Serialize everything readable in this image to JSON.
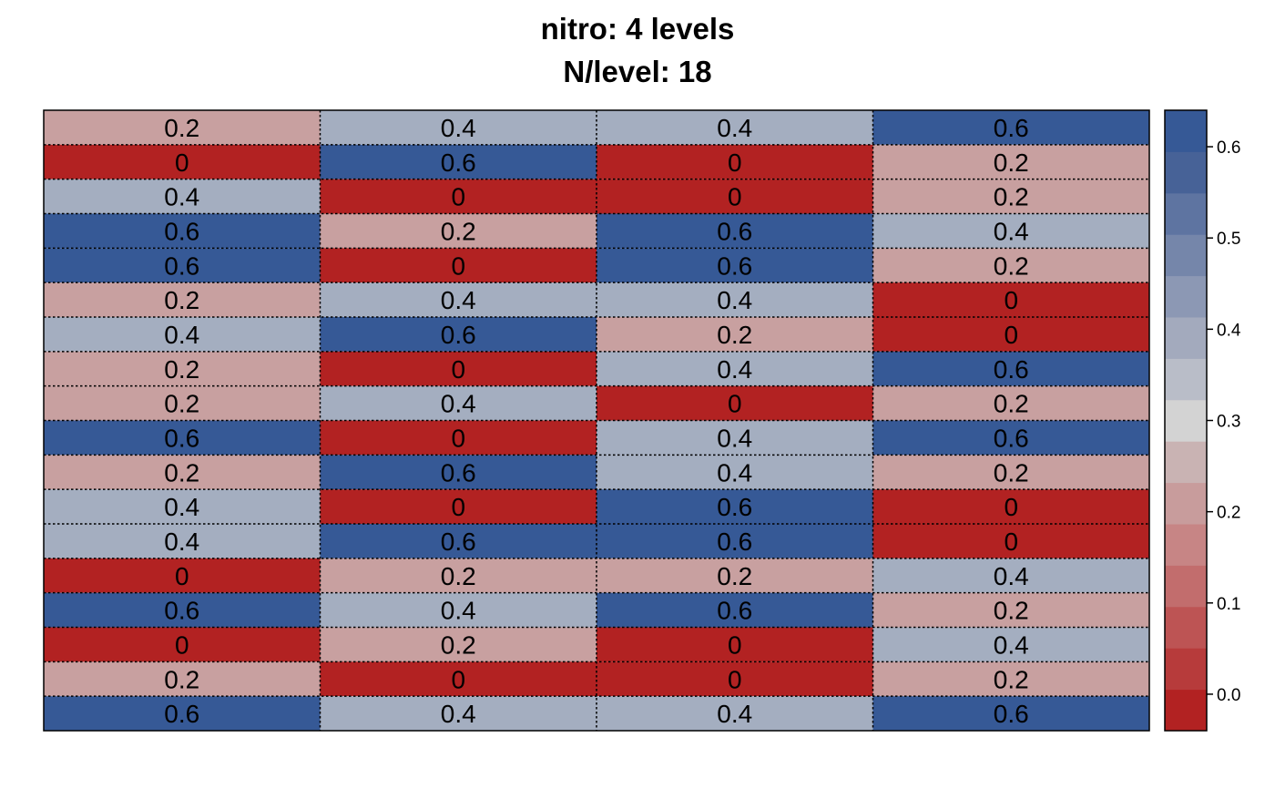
{
  "chart_data": {
    "type": "heatmap",
    "title": "nitro: 4 levels",
    "subtitle": "N/level: 18",
    "columns": 4,
    "values": [
      [
        0.2,
        0.4,
        0.4,
        0.6
      ],
      [
        0,
        0.6,
        0,
        0.2
      ],
      [
        0.4,
        0,
        0,
        0.2
      ],
      [
        0.6,
        0.2,
        0.6,
        0.4
      ],
      [
        0.6,
        0,
        0.6,
        0.2
      ],
      [
        0.2,
        0.4,
        0.4,
        0
      ],
      [
        0.4,
        0.6,
        0.2,
        0
      ],
      [
        0.2,
        0,
        0.4,
        0.6
      ],
      [
        0.2,
        0.4,
        0,
        0.2
      ],
      [
        0.6,
        0,
        0.4,
        0.6
      ],
      [
        0.2,
        0.6,
        0.4,
        0.2
      ],
      [
        0.4,
        0,
        0.6,
        0
      ],
      [
        0.4,
        0.6,
        0.6,
        0
      ],
      [
        0,
        0.2,
        0.2,
        0.4
      ],
      [
        0.6,
        0.4,
        0.6,
        0.2
      ],
      [
        0,
        0.2,
        0,
        0.4
      ],
      [
        0.2,
        0,
        0,
        0.2
      ],
      [
        0.6,
        0.4,
        0.4,
        0.6
      ]
    ],
    "cell_labels": [
      [
        "0.2",
        "0.4",
        "0.4",
        "0.6"
      ],
      [
        "0",
        "0.6",
        "0",
        "0.2"
      ],
      [
        "0.4",
        "0",
        "0",
        "0.2"
      ],
      [
        "0.6",
        "0.2",
        "0.6",
        "0.4"
      ],
      [
        "0.6",
        "0",
        "0.6",
        "0.2"
      ],
      [
        "0.2",
        "0.4",
        "0.4",
        "0"
      ],
      [
        "0.4",
        "0.6",
        "0.2",
        "0"
      ],
      [
        "0.2",
        "0",
        "0.4",
        "0.6"
      ],
      [
        "0.2",
        "0.4",
        "0",
        "0.2"
      ],
      [
        "0.6",
        "0",
        "0.4",
        "0.6"
      ],
      [
        "0.2",
        "0.6",
        "0.4",
        "0.2"
      ],
      [
        "0.4",
        "0",
        "0.6",
        "0"
      ],
      [
        "0.4",
        "0.6",
        "0.6",
        "0"
      ],
      [
        "0",
        "0.2",
        "0.2",
        "0.4"
      ],
      [
        "0.6",
        "0.4",
        "0.6",
        "0.2"
      ],
      [
        "0",
        "0.2",
        "0",
        "0.4"
      ],
      [
        "0.2",
        "0",
        "0",
        "0.2"
      ],
      [
        "0.6",
        "0.4",
        "0.4",
        "0.6"
      ]
    ],
    "value_colors": {
      "0": "#B22222",
      "0.2": "#C8A0A0",
      "0.4": "#A4AEC0",
      "0.6": "#365996"
    },
    "colorbar": {
      "range": [
        -0.04,
        0.64
      ],
      "ticks": [
        "0.0",
        "0.1",
        "0.2",
        "0.3",
        "0.4",
        "0.5",
        "0.6"
      ],
      "tick_values": [
        0.0,
        0.1,
        0.2,
        0.3,
        0.4,
        0.5,
        0.6
      ],
      "steps": [
        "#B22222",
        "#B73B3B",
        "#BD5454",
        "#C26D6D",
        "#C78585",
        "#C89C9C",
        "#C9B3B3",
        "#D3D3D3",
        "#B9BDC8",
        "#A3AABD",
        "#8C98B4",
        "#7586AA",
        "#5E74A1",
        "#476297",
        "#365996"
      ]
    },
    "grid_lines": "dotted",
    "legend_placement": "right"
  }
}
